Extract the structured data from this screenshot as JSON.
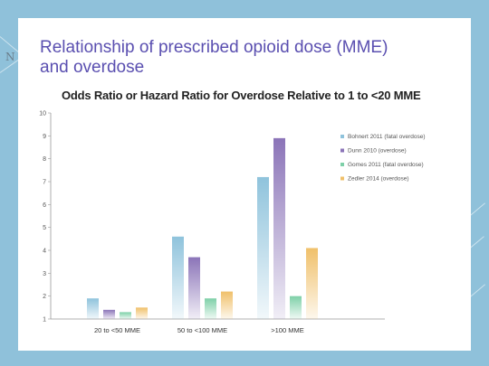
{
  "slide": {
    "title": "Relationship of prescribed opioid dose (MME) and overdose",
    "left_mark": "N"
  },
  "chart_data": {
    "type": "bar",
    "title": "Odds Ratio or Hazard Ratio for Overdose Relative to 1 to <20 MME",
    "categories": [
      "20 to <50 MME",
      "50 to <100 MME",
      ">100 MME"
    ],
    "series": [
      {
        "name": "Bohnert 2011 (fatal overdose)",
        "color": "#8fc3dc",
        "values": [
          1.9,
          4.6,
          7.2
        ]
      },
      {
        "name": "Dunn 2010 (overdose)",
        "color": "#8b74b8",
        "values": [
          1.4,
          3.7,
          8.9
        ]
      },
      {
        "name": "Gomes 2011 (fatal overdose)",
        "color": "#7ed0a8",
        "values": [
          1.3,
          1.9,
          2.0
        ]
      },
      {
        "name": "Zedler 2014 (overdose)",
        "color": "#f0c06a",
        "values": [
          1.5,
          2.2,
          4.1
        ]
      }
    ],
    "ylim": [
      1,
      10
    ],
    "yticks": [
      1,
      2,
      3,
      4,
      5,
      6,
      7,
      8,
      9,
      10
    ],
    "xlabel": "",
    "ylabel": "",
    "legend_position": "right",
    "grid": false
  }
}
